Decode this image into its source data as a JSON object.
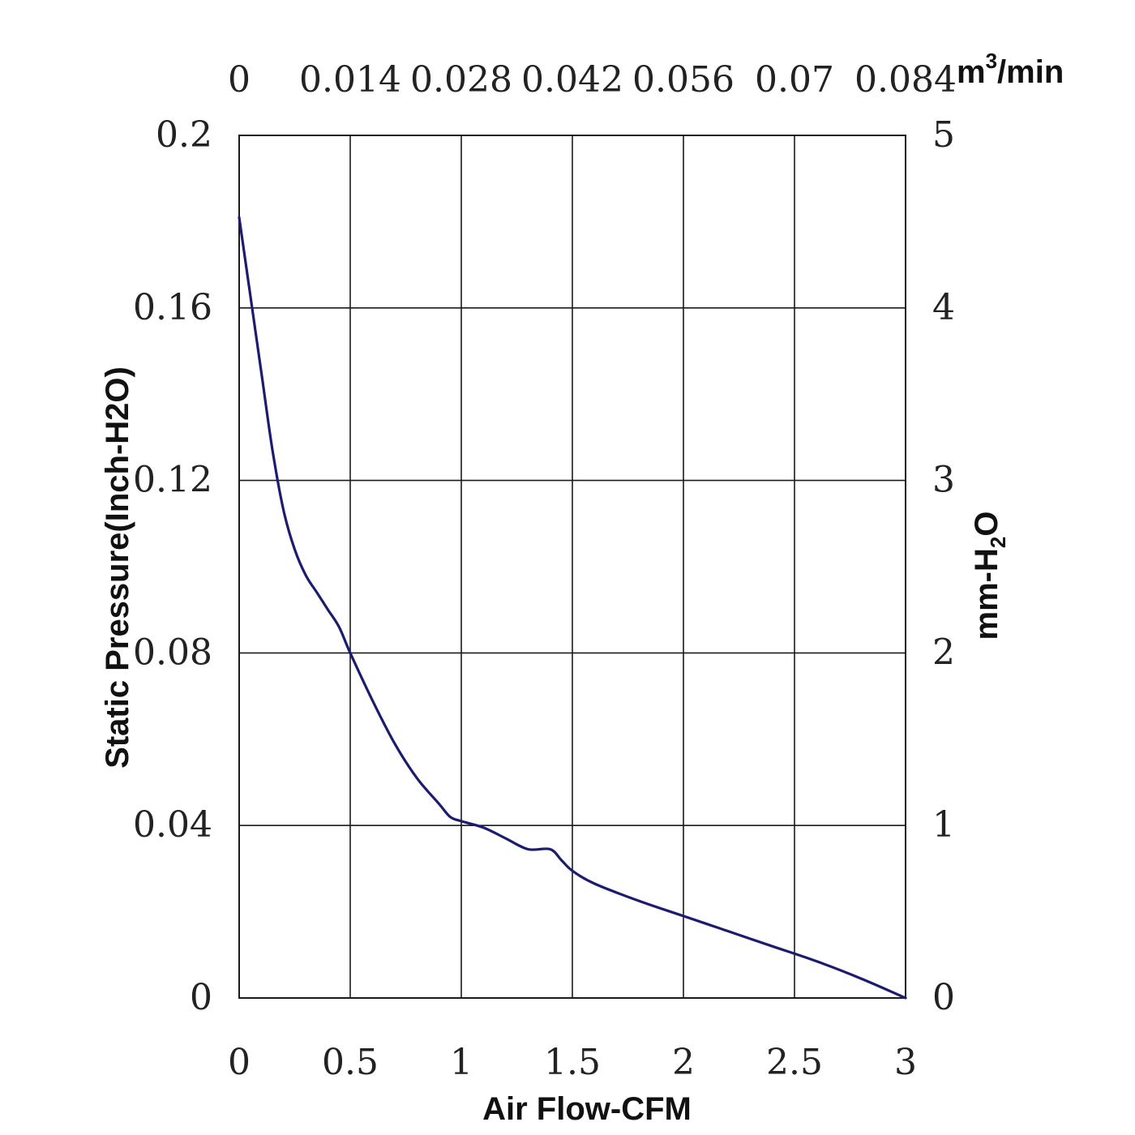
{
  "chart_data": {
    "type": "line",
    "title": "",
    "xlabel": "Air Flow-CFM",
    "ylabel": "Static Pressure(Inch-H2O)",
    "secondary_x_axis": {
      "label_base": "m",
      "label_sup": "3",
      "label_rest": "/min",
      "ticks": [
        "0",
        "0.014",
        "0.028",
        "0.042",
        "0.056",
        "0.07",
        "0.084"
      ]
    },
    "secondary_y_axis": {
      "label_base": "mm-H",
      "label_sub": "2",
      "label_rest": "O",
      "ticks": [
        "0",
        "1",
        "2",
        "3",
        "4",
        "5"
      ]
    },
    "x_ticks": [
      "0",
      "0.5",
      "1",
      "1.5",
      "2",
      "2.5",
      "3"
    ],
    "y_ticks": [
      "0",
      "0.04",
      "0.08",
      "0.12",
      "0.16",
      "0.2"
    ],
    "xlim": [
      0,
      3
    ],
    "ylim": [
      0,
      0.2
    ],
    "grid": true,
    "line_color": "#1c1c6e",
    "series": [
      {
        "x": [
          0,
          0.05,
          0.1,
          0.15,
          0.2,
          0.25,
          0.3,
          0.35,
          0.4,
          0.45,
          0.5,
          0.6,
          0.7,
          0.8,
          0.9,
          0.95,
          1.0,
          1.1,
          1.2,
          1.3,
          1.4,
          1.45,
          1.5,
          1.6,
          1.8,
          2.0,
          2.2,
          2.4,
          2.6,
          2.8,
          3.0
        ],
        "y": [
          0.181,
          0.163,
          0.145,
          0.127,
          0.113,
          0.104,
          0.098,
          0.094,
          0.09,
          0.086,
          0.08,
          0.069,
          0.059,
          0.051,
          0.045,
          0.042,
          0.041,
          0.0395,
          0.037,
          0.0345,
          0.0345,
          0.032,
          0.0295,
          0.0265,
          0.0225,
          0.019,
          0.0155,
          0.012,
          0.0085,
          0.0045,
          0.0
        ]
      }
    ]
  }
}
